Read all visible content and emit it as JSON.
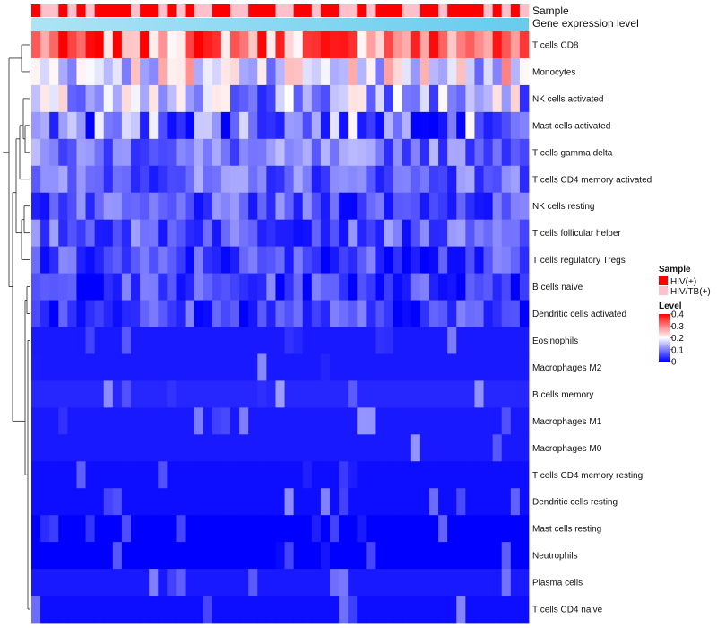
{
  "colors": {
    "low": "#0000ff",
    "mid": "#ffffff",
    "high": "#ff0000",
    "hiv": "#ff0000",
    "hivtb": "#ffc0cb",
    "gene_level": "#66ccee",
    "gene_level_strip": "#aee3f5"
  },
  "chart_data": {
    "type": "heatmap",
    "annotation_labels": {
      "sample": "Sample",
      "gene": "Gene expression level"
    },
    "row_labels": [
      "T cells CD8",
      "Monocytes",
      "NK cells activated",
      "Mast cells activated",
      "T cells gamma delta",
      "T cells CD4 memory activated",
      "NK cells resting",
      "T cells follicular helper",
      "T cells regulatory  Tregs",
      "B cells naive",
      "Dendritic cells activated",
      "Eosinophils",
      "Macrophages M2",
      "B cells memory",
      "Macrophages M1",
      "Macrophages M0",
      "T cells CD4 memory resting",
      "Dendritic cells resting",
      "Mast cells resting",
      "Neutrophils",
      "Plasma cells",
      "T cells CD4 naive"
    ],
    "row_base_levels": [
      0.31,
      0.19,
      0.13,
      0.1,
      0.09,
      0.08,
      0.06,
      0.07,
      0.05,
      0.05,
      0.05,
      0.02,
      0.02,
      0.03,
      0.02,
      0.02,
      0.01,
      0.01,
      0.0,
      0.0,
      0.02,
      0.01
    ],
    "sample_groups": [
      "HIV(+)",
      "HIV/TB(+)",
      "HIV/TB(+)",
      "HIV(+)",
      "HIV/TB(+)",
      "HIV(+)",
      "HIV/TB(+)",
      "HIV(+)",
      "HIV(+)",
      "HIV(+)",
      "HIV(+)",
      "HIV/TB(+)",
      "HIV(+)",
      "HIV(+)",
      "HIV/TB(+)",
      "HIV(+)",
      "HIV/TB(+)",
      "HIV(+)",
      "HIV/TB(+)",
      "HIV/TB(+)",
      "HIV(+)",
      "HIV(+)",
      "HIV/TB(+)",
      "HIV/TB(+)",
      "HIV(+)",
      "HIV(+)",
      "HIV(+)",
      "HIV/TB(+)",
      "HIV/TB(+)",
      "HIV(+)",
      "HIV(+)",
      "HIV/TB(+)",
      "HIV(+)",
      "HIV(+)",
      "HIV/TB(+)",
      "HIV/TB(+)",
      "HIV(+)",
      "HIV/TB(+)",
      "HIV(+)",
      "HIV(+)",
      "HIV(+)",
      "HIV/TB(+)",
      "HIV/TB(+)",
      "HIV(+)",
      "HIV(+)",
      "HIV/TB(+)",
      "HIV(+)",
      "HIV(+)",
      "HIV(+)",
      "HIV(+)",
      "HIV/TB(+)",
      "HIV(+)",
      "HIV/TB(+)",
      "HIV(+)",
      "HIV/TB(+)"
    ],
    "n_samples": 55,
    "legend": {
      "sample_title": "Sample",
      "sample_entries": [
        "HIV(+)",
        "HIV/TB(+)"
      ],
      "level_title": "Level",
      "level_ticks": [
        "0.4",
        "0.3",
        "0.2",
        "0.1",
        "0"
      ],
      "level_range": [
        0,
        0.4
      ]
    }
  }
}
